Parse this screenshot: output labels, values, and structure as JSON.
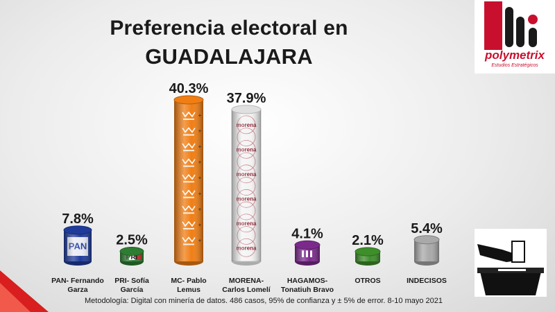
{
  "chart_data": {
    "type": "bar",
    "title": "Preferencia electoral en",
    "subtitle": "GUADALAJARA",
    "xlabel": "",
    "ylabel": "",
    "ylim": [
      0,
      42
    ],
    "grid": false,
    "categories": [
      [
        "PAN- Fernando",
        "Garza"
      ],
      [
        "PRI- Sofía",
        "García"
      ],
      [
        "MC- Pablo",
        "Lemus"
      ],
      [
        "MORENA-",
        "Carlos Lomelí"
      ],
      [
        "HAGAMOS-",
        "Tonatiuh Bravo"
      ],
      [
        "OTROS"
      ],
      [
        "INDECISOS"
      ]
    ],
    "values": [
      7.8,
      2.5,
      40.3,
      37.9,
      4.1,
      2.1,
      5.4
    ],
    "value_labels": [
      "7.8%",
      "2.5%",
      "40.3%",
      "37.9%",
      "4.1%",
      "2.1%",
      "5.4%"
    ],
    "colors": [
      "#1f3c9a",
      "#2e7d32",
      "#f07e14",
      "#f4f4f4",
      "#7b2a8c",
      "#3e8e2b",
      "#a9a9a9"
    ],
    "emblems": [
      "PAN",
      "PRI",
      "",
      "morena",
      "",
      "",
      ""
    ]
  },
  "brand": {
    "name": "polymetrix",
    "tagline": "Estudios Estratégicos"
  },
  "footnote": "Metodología: Digital con minería de datos. 486 casos, 95% de confianza y ± 5% de error. 8-10 mayo 2021"
}
